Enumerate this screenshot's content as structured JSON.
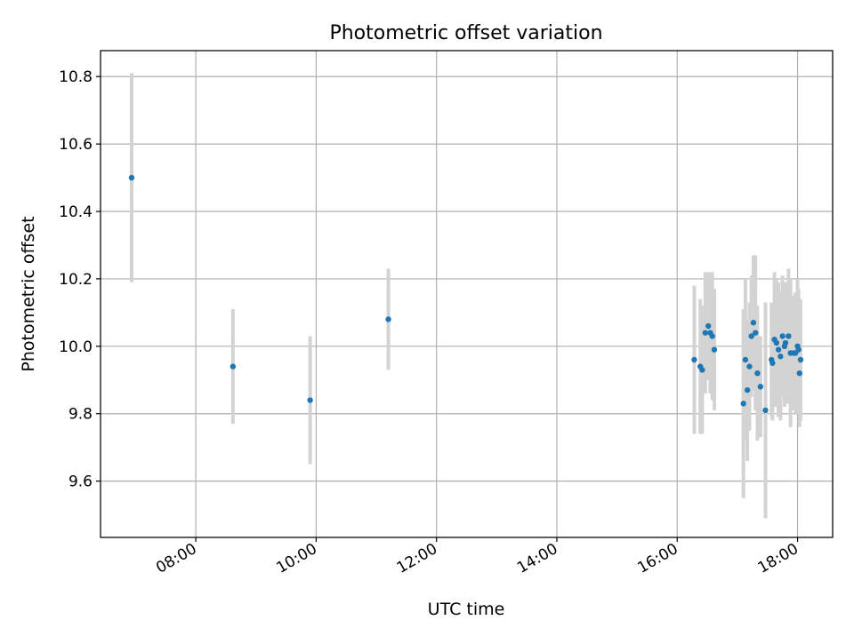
{
  "chart_data": {
    "type": "scatter",
    "title": "Photometric offset variation",
    "xlabel": "UTC time",
    "ylabel": "Photometric offset",
    "xlim": [
      "06:25",
      "18:35"
    ],
    "ylim": [
      9.433,
      10.877
    ],
    "grid": true,
    "x_ticks": [
      "08:00",
      "10:00",
      "12:00",
      "14:00",
      "16:00",
      "18:00"
    ],
    "y_ticks": [
      "9.6",
      "9.8",
      "10.0",
      "10.2",
      "10.4",
      "10.6",
      "10.8"
    ],
    "colors": {
      "point": "#1f77b4",
      "errorbar": "#d3d3d3",
      "grid": "#b0b0b0",
      "axes": "#000000"
    },
    "series": [
      {
        "points": [
          {
            "x": "06:56",
            "y": 10.5,
            "err": 0.31
          },
          {
            "x": "08:37",
            "y": 9.94,
            "err": 0.17
          },
          {
            "x": "09:54",
            "y": 9.84,
            "err": 0.19
          },
          {
            "x": "11:12",
            "y": 10.08,
            "err": 0.15
          },
          {
            "x": "16:17",
            "y": 9.96,
            "err": 0.22
          },
          {
            "x": "16:23",
            "y": 9.94,
            "err": 0.2
          },
          {
            "x": "16:25",
            "y": 9.93,
            "err": 0.19
          },
          {
            "x": "16:28",
            "y": 10.04,
            "err": 0.18
          },
          {
            "x": "16:31",
            "y": 10.06,
            "err": 0.16
          },
          {
            "x": "16:33",
            "y": 10.04,
            "err": 0.18
          },
          {
            "x": "16:35",
            "y": 10.03,
            "err": 0.19
          },
          {
            "x": "16:37",
            "y": 9.99,
            "err": 0.18
          },
          {
            "x": "17:06",
            "y": 9.83,
            "err": 0.28
          },
          {
            "x": "17:08",
            "y": 9.96,
            "err": 0.24
          },
          {
            "x": "17:10",
            "y": 9.87,
            "err": 0.21
          },
          {
            "x": "17:12",
            "y": 9.94,
            "err": 0.19
          },
          {
            "x": "17:14",
            "y": 10.03,
            "err": 0.18
          },
          {
            "x": "17:16",
            "y": 10.07,
            "err": 0.2
          },
          {
            "x": "17:18",
            "y": 10.04,
            "err": 0.23
          },
          {
            "x": "17:20",
            "y": 9.92,
            "err": 0.2
          },
          {
            "x": "17:23",
            "y": 9.88,
            "err": 0.15
          },
          {
            "x": "17:28",
            "y": 9.81,
            "err": 0.32
          },
          {
            "x": "17:34",
            "y": 9.96,
            "err": 0.17
          },
          {
            "x": "17:35",
            "y": 9.95,
            "err": 0.17
          },
          {
            "x": "17:37",
            "y": 10.02,
            "err": 0.2
          },
          {
            "x": "17:39",
            "y": 10.01,
            "err": 0.19
          },
          {
            "x": "17:41",
            "y": 9.99,
            "err": 0.2
          },
          {
            "x": "17:43",
            "y": 9.97,
            "err": 0.19
          },
          {
            "x": "17:45",
            "y": 10.03,
            "err": 0.18
          },
          {
            "x": "17:47",
            "y": 10.0,
            "err": 0.18
          },
          {
            "x": "17:48",
            "y": 10.01,
            "err": 0.18
          },
          {
            "x": "17:51",
            "y": 10.03,
            "err": 0.2
          },
          {
            "x": "17:53",
            "y": 9.98,
            "err": 0.22
          },
          {
            "x": "17:56",
            "y": 9.98,
            "err": 0.17
          },
          {
            "x": "17:58",
            "y": 9.98,
            "err": 0.18
          },
          {
            "x": "18:00",
            "y": 10.0,
            "err": 0.2
          },
          {
            "x": "18:01",
            "y": 9.99,
            "err": 0.18
          },
          {
            "x": "18:02",
            "y": 9.92,
            "err": 0.16
          },
          {
            "x": "18:03",
            "y": 9.96,
            "err": 0.18
          }
        ]
      }
    ]
  }
}
